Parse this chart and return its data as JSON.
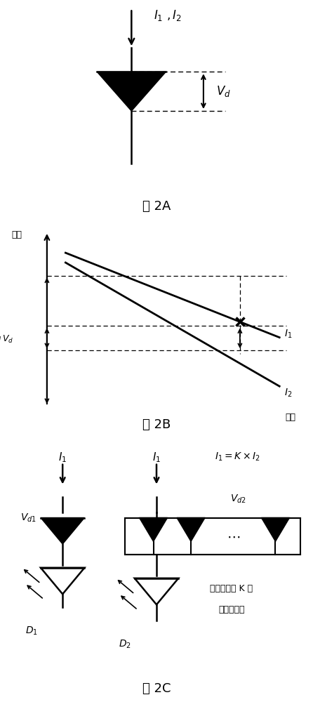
{
  "fig_width": 4.46,
  "fig_height": 10.0,
  "bg_color": "#ffffff",
  "font_color": "#000000",
  "label_2A": "图 2A",
  "label_2B": "图 2B",
  "label_2C": "图 2C"
}
